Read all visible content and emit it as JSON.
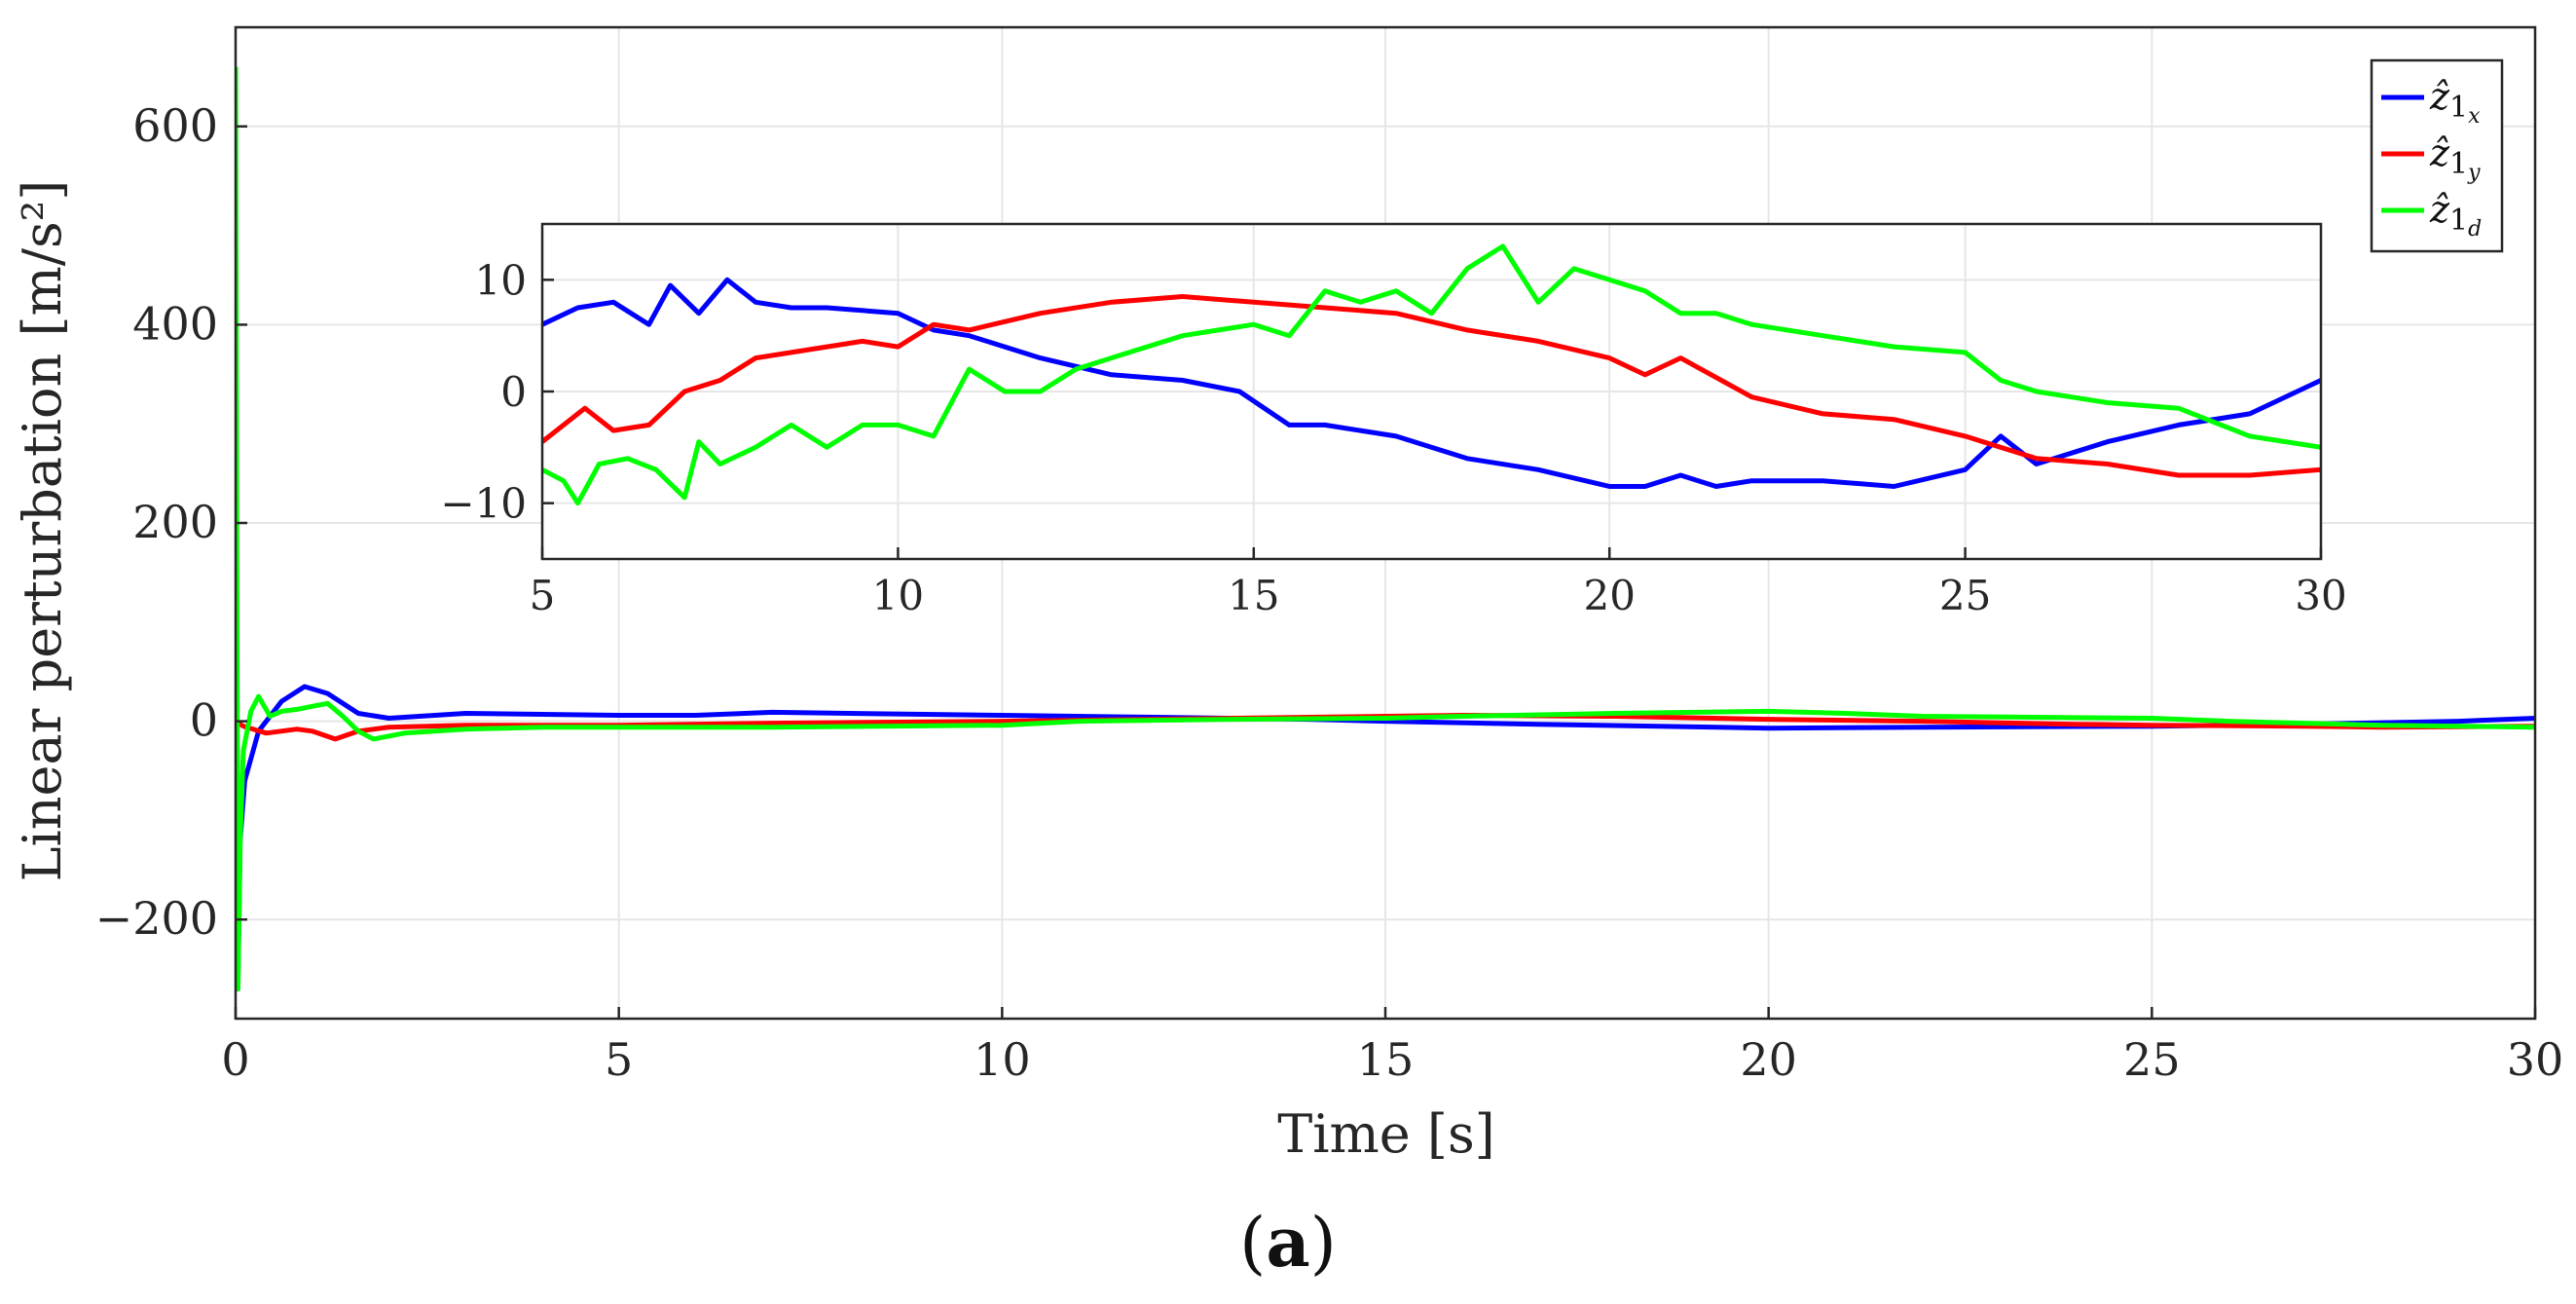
{
  "chart_data": [
    {
      "id": "main",
      "type": "line",
      "title": "",
      "xlabel": "Time [s]",
      "ylabel": "Linear perturbation [m/s²]",
      "xlim": [
        0,
        30
      ],
      "ylim": [
        -300,
        700
      ],
      "xticks": [
        0,
        5,
        10,
        15,
        20,
        25,
        30
      ],
      "yticks": [
        -200,
        0,
        200,
        400,
        600
      ],
      "ytick_labels": [
        "−200",
        "0",
        "200",
        "400",
        "600"
      ],
      "grid": true,
      "legend_position": "top-right",
      "series": [
        {
          "name": "ẑ1x",
          "color": "#0000ff",
          "x": [
            0,
            0.03,
            0.06,
            0.12,
            0.3,
            0.6,
            0.9,
            1.2,
            1.6,
            2.0,
            3.0,
            5,
            6,
            7,
            8,
            9,
            10,
            12,
            14,
            15,
            17,
            20,
            22,
            25,
            27,
            29,
            30
          ],
          "y": [
            180,
            -270,
            -120,
            -60,
            -10,
            20,
            35,
            28,
            8,
            3,
            8,
            6,
            6,
            9,
            8,
            7,
            6,
            4,
            2,
            0,
            -3,
            -7,
            -6,
            -5,
            -3,
            0,
            3
          ]
        },
        {
          "name": "ẑ1y",
          "color": "#ff0000",
          "x": [
            0,
            0.1,
            0.4,
            0.8,
            1.0,
            1.3,
            1.6,
            2,
            3,
            5,
            7,
            10,
            12,
            14,
            16,
            18,
            20,
            22,
            24,
            25,
            27,
            28,
            30
          ],
          "y": [
            0,
            -5,
            -12,
            -8,
            -10,
            -18,
            -10,
            -6,
            -4,
            -4,
            -2,
            0,
            2,
            4,
            6,
            5,
            2,
            0,
            -3,
            -4,
            -5,
            -6,
            -5
          ]
        },
        {
          "name": "ẑ1d",
          "color": "#00ff00",
          "x": [
            0,
            0.01,
            0.03,
            0.06,
            0.1,
            0.2,
            0.3,
            0.45,
            0.6,
            0.8,
            1.0,
            1.2,
            1.4,
            1.6,
            1.8,
            2.2,
            2.6,
            3,
            4,
            5,
            7,
            10,
            11,
            13,
            15,
            16,
            18,
            20,
            21,
            22,
            25,
            26,
            28,
            30
          ],
          "y": [
            660,
            350,
            -270,
            -120,
            -30,
            10,
            25,
            5,
            10,
            12,
            15,
            18,
            5,
            -10,
            -18,
            -12,
            -10,
            -8,
            -6,
            -6,
            -6,
            -4,
            0,
            2,
            3,
            5,
            8,
            10,
            8,
            5,
            3,
            0,
            -4,
            -6
          ]
        }
      ]
    },
    {
      "id": "inset",
      "type": "line",
      "xlim": [
        5,
        30
      ],
      "ylim": [
        -15,
        15
      ],
      "xticks": [
        5,
        10,
        15,
        20,
        25,
        30
      ],
      "yticks": [
        -10,
        0,
        10
      ],
      "ytick_labels": [
        "−10",
        "0",
        "10"
      ],
      "grid": true,
      "series": [
        {
          "name": "ẑ1x",
          "color": "#0000ff",
          "x": [
            5,
            5.5,
            6,
            6.5,
            6.8,
            7.2,
            7.6,
            8,
            8.5,
            9,
            10,
            10.5,
            11,
            12,
            13,
            14,
            14.8,
            15.5,
            16,
            17,
            18,
            19,
            20,
            20.5,
            21,
            21.5,
            22,
            23,
            24,
            25,
            25.5,
            26,
            27,
            28,
            29,
            30
          ],
          "y": [
            6,
            7.5,
            8,
            6,
            9.5,
            7,
            10,
            8,
            7.5,
            7.5,
            7,
            5.5,
            5,
            3,
            1.5,
            1,
            0,
            -3,
            -3,
            -4,
            -6,
            -7,
            -8.5,
            -8.5,
            -7.5,
            -8.5,
            -8,
            -8,
            -8.5,
            -7,
            -4,
            -6.5,
            -4.5,
            -3,
            -2,
            1
          ]
        },
        {
          "name": "ẑ1y",
          "color": "#ff0000",
          "x": [
            5,
            5.6,
            6,
            6.5,
            7,
            7.5,
            8,
            8.5,
            9,
            9.5,
            10,
            10.5,
            11,
            12,
            13,
            14,
            15,
            16,
            17,
            18,
            19,
            20,
            20.5,
            21,
            22,
            23,
            24,
            25,
            26,
            27,
            28,
            29,
            30
          ],
          "y": [
            -4.5,
            -1.5,
            -3.5,
            -3,
            0,
            1,
            3,
            3.5,
            4,
            4.5,
            4,
            6,
            5.5,
            7,
            8,
            8.5,
            8,
            7.5,
            7,
            5.5,
            4.5,
            3,
            1.5,
            3,
            -0.5,
            -2,
            -2.5,
            -4,
            -6,
            -6.5,
            -7.5,
            -7.5,
            -7
          ]
        },
        {
          "name": "ẑ1d",
          "color": "#00ff00",
          "x": [
            5,
            5.3,
            5.5,
            5.8,
            6.2,
            6.6,
            7,
            7.2,
            7.5,
            8,
            8.5,
            9,
            9.5,
            10,
            10.5,
            11,
            11.5,
            12,
            12.5,
            13,
            14,
            15,
            15.5,
            16,
            16.5,
            17,
            17.5,
            18,
            18.5,
            19,
            19.5,
            20,
            20.5,
            21,
            21.5,
            22,
            23,
            24,
            25,
            25.5,
            26,
            27,
            28,
            29,
            30
          ],
          "y": [
            -7,
            -8,
            -10,
            -6.5,
            -6,
            -7,
            -9.5,
            -4.5,
            -6.5,
            -5,
            -3,
            -5,
            -3,
            -3,
            -4,
            2,
            0,
            0,
            2,
            3,
            5,
            6,
            5,
            9,
            8,
            9,
            7,
            11,
            13,
            8,
            11,
            10,
            9,
            7,
            7,
            6,
            5,
            4,
            3.5,
            1,
            0,
            -1,
            -1.5,
            -4,
            -5
          ]
        }
      ]
    }
  ],
  "legend": {
    "entries": [
      {
        "base": "ẑ",
        "sub1": "1",
        "sub2": "x",
        "color": "#0000ff"
      },
      {
        "base": "ẑ",
        "sub1": "1",
        "sub2": "y",
        "color": "#ff0000"
      },
      {
        "base": "ẑ",
        "sub1": "1",
        "sub2": "d",
        "color": "#00ff00"
      }
    ]
  },
  "caption": {
    "open": "(",
    "letter": "a",
    "close": ")"
  }
}
